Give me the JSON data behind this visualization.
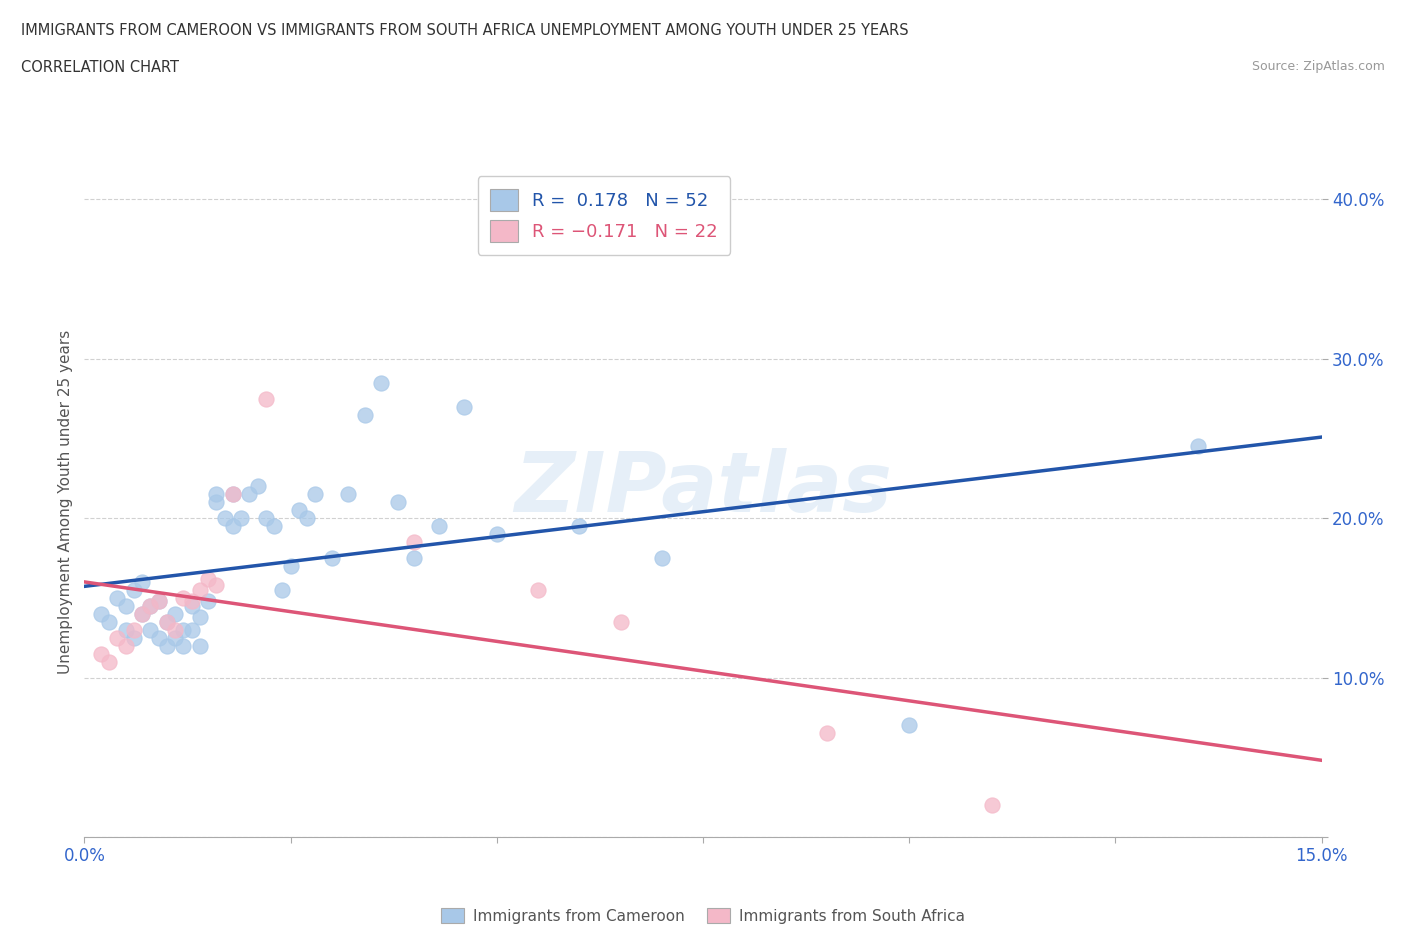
{
  "title_line1": "IMMIGRANTS FROM CAMEROON VS IMMIGRANTS FROM SOUTH AFRICA UNEMPLOYMENT AMONG YOUTH UNDER 25 YEARS",
  "title_line2": "CORRELATION CHART",
  "source": "Source: ZipAtlas.com",
  "ylabel": "Unemployment Among Youth under 25 years",
  "xlim": [
    0.0,
    0.15
  ],
  "ylim": [
    0.0,
    0.42
  ],
  "cameroon_color": "#a8c8e8",
  "south_africa_color": "#f4b8c8",
  "cameroon_line_color": "#2255aa",
  "south_africa_line_color": "#dd5577",
  "R_cameroon": 0.178,
  "N_cameroon": 52,
  "R_south_africa": -0.171,
  "N_south_africa": 22,
  "watermark": "ZIPatlas",
  "cameroon_x": [
    0.002,
    0.003,
    0.004,
    0.005,
    0.005,
    0.006,
    0.006,
    0.007,
    0.007,
    0.008,
    0.008,
    0.009,
    0.009,
    0.01,
    0.01,
    0.011,
    0.011,
    0.012,
    0.012,
    0.013,
    0.013,
    0.014,
    0.014,
    0.015,
    0.016,
    0.016,
    0.017,
    0.018,
    0.018,
    0.019,
    0.02,
    0.021,
    0.022,
    0.023,
    0.024,
    0.025,
    0.026,
    0.027,
    0.028,
    0.03,
    0.032,
    0.034,
    0.036,
    0.038,
    0.04,
    0.043,
    0.046,
    0.05,
    0.06,
    0.07,
    0.1,
    0.135
  ],
  "cameroon_y": [
    0.14,
    0.135,
    0.15,
    0.13,
    0.145,
    0.155,
    0.125,
    0.14,
    0.16,
    0.145,
    0.13,
    0.148,
    0.125,
    0.135,
    0.12,
    0.14,
    0.125,
    0.13,
    0.12,
    0.145,
    0.13,
    0.138,
    0.12,
    0.148,
    0.21,
    0.215,
    0.2,
    0.215,
    0.195,
    0.2,
    0.215,
    0.22,
    0.2,
    0.195,
    0.155,
    0.17,
    0.205,
    0.2,
    0.215,
    0.175,
    0.215,
    0.265,
    0.285,
    0.21,
    0.175,
    0.195,
    0.27,
    0.19,
    0.195,
    0.175,
    0.07,
    0.245
  ],
  "south_africa_x": [
    0.002,
    0.003,
    0.004,
    0.005,
    0.006,
    0.007,
    0.008,
    0.009,
    0.01,
    0.011,
    0.012,
    0.013,
    0.014,
    0.015,
    0.016,
    0.018,
    0.022,
    0.04,
    0.055,
    0.065,
    0.09,
    0.11
  ],
  "south_africa_y": [
    0.115,
    0.11,
    0.125,
    0.12,
    0.13,
    0.14,
    0.145,
    0.148,
    0.135,
    0.13,
    0.15,
    0.148,
    0.155,
    0.162,
    0.158,
    0.215,
    0.275,
    0.185,
    0.155,
    0.135,
    0.065,
    0.02
  ]
}
